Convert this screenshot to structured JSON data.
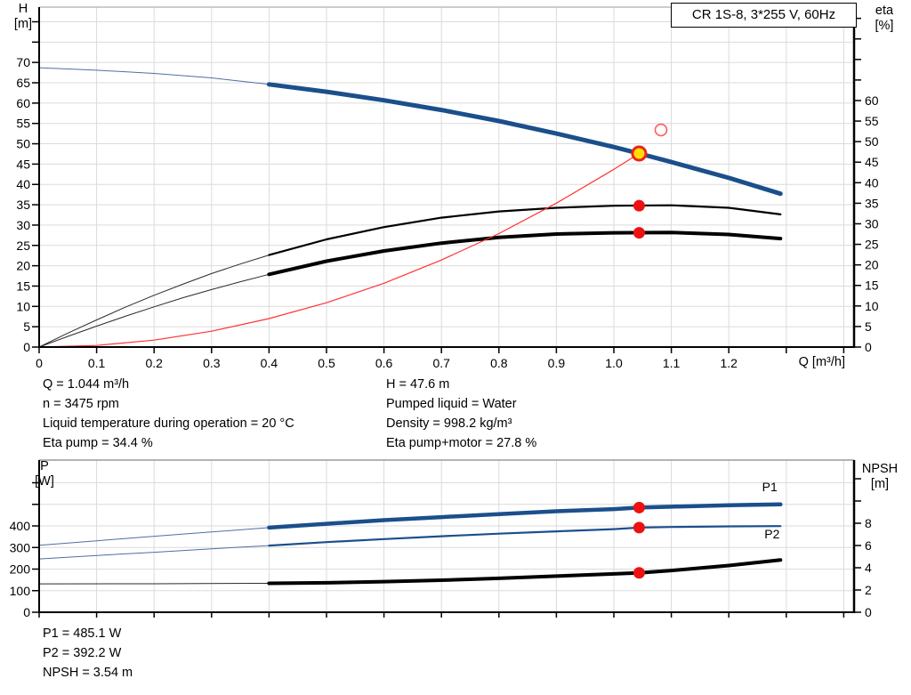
{
  "title_box": {
    "label": "CR 1S-8, 3*255 V, 60Hz"
  },
  "axes": {
    "top_left": "H\n[m]",
    "top_right": "eta\n[%]",
    "x_label": "Q [m³/h]",
    "bottom_left": "P\n[W]",
    "bottom_right": "NPSH\n[m]"
  },
  "info_block": {
    "left": [
      "Q = 1.044 m³/h",
      "n = 3475 rpm",
      "Liquid temperature during operation = 20 °C",
      "Eta pump = 34.4 %"
    ],
    "right": [
      "H = 47.6 m",
      "Pumped liquid = Water",
      "Density = 998.2 kg/m³",
      "Eta pump+motor = 27.8 %"
    ]
  },
  "footer_block": [
    "P1 = 485.1 W",
    "P2 = 392.2 W",
    "NPSH = 3.54 m"
  ],
  "colors": {
    "curve_blue": "#1B4F8C",
    "thin_blue": "#4F6F9F",
    "curve_black": "#000000",
    "thin_black": "#2A2A2A",
    "system_red": "#FF3333",
    "dot_red": "#EE1111",
    "duty_fill": "#FFDE00",
    "duty_ring": "#E8261F",
    "open_red": "#FF5A5A",
    "grid": "#DBDBDB",
    "border_gray": "#9A9A9A",
    "axis": "#000000"
  },
  "chart_data": [
    {
      "type": "line",
      "name": "hq-eta-chart",
      "title": "CR 1S-8, 3*255 V, 60Hz",
      "x_axis": {
        "label": "Q [m³/h]",
        "range": [
          0,
          1.418
        ],
        "tick_values": [
          0,
          0.1,
          0.2,
          0.3,
          0.4,
          0.5,
          0.6,
          0.7,
          0.8,
          0.9,
          1.0,
          1.1,
          1.2,
          1.3,
          1.4
        ],
        "tick_labels": [
          "0",
          "0.1",
          "0.2",
          "0.3",
          "0.4",
          "0.5",
          "0.6",
          "0.7",
          "0.8",
          "0.9",
          "1.0",
          "1.1",
          "1.2"
        ]
      },
      "y_left": {
        "label": "H [m]",
        "range": [
          0,
          83.6
        ],
        "tick_step": 5,
        "tick_max": 80,
        "labeled_max": 70
      },
      "y_right": {
        "label": "eta [%]",
        "range": [
          0,
          82.7
        ],
        "tick_step": 5,
        "tick_max": 80,
        "labeled_max": 60
      },
      "grid": true,
      "series": [
        {
          "name": "head-curve-extension",
          "axis": "left",
          "color_key": "thin_blue",
          "width": 1,
          "points": [
            [
              0,
              68.7
            ],
            [
              0.1,
              68.1
            ],
            [
              0.2,
              67.3
            ],
            [
              0.3,
              66.2
            ],
            [
              0.4,
              64.6
            ]
          ]
        },
        {
          "name": "head-curve",
          "axis": "left",
          "color_key": "curve_blue",
          "width": 5,
          "points": [
            [
              0.4,
              64.6
            ],
            [
              0.5,
              62.8
            ],
            [
              0.6,
              60.7
            ],
            [
              0.7,
              58.3
            ],
            [
              0.8,
              55.6
            ],
            [
              0.9,
              52.5
            ],
            [
              1.0,
              49.2
            ],
            [
              1.044,
              47.6
            ],
            [
              1.1,
              45.5
            ],
            [
              1.2,
              41.6
            ],
            [
              1.29,
              37.7
            ]
          ]
        },
        {
          "name": "eta-pump-curve-extension",
          "axis": "right",
          "color_key": "thin_black",
          "width": 1,
          "points": [
            [
              0,
              0
            ],
            [
              0.05,
              3.4
            ],
            [
              0.1,
              6.6
            ],
            [
              0.15,
              9.7
            ],
            [
              0.2,
              12.6
            ],
            [
              0.25,
              15.3
            ],
            [
              0.3,
              17.9
            ],
            [
              0.35,
              20.2
            ],
            [
              0.4,
              22.4
            ]
          ]
        },
        {
          "name": "eta-pump-curve",
          "axis": "right",
          "color_key": "curve_black",
          "width": 2.2,
          "points": [
            [
              0.4,
              22.4
            ],
            [
              0.5,
              26.2
            ],
            [
              0.6,
              29.2
            ],
            [
              0.7,
              31.5
            ],
            [
              0.8,
              33.0
            ],
            [
              0.9,
              33.9
            ],
            [
              1.0,
              34.4
            ],
            [
              1.1,
              34.5
            ],
            [
              1.2,
              33.9
            ],
            [
              1.29,
              32.3
            ]
          ]
        },
        {
          "name": "eta-pump-motor-curve-extension",
          "axis": "right",
          "color_key": "thin_black",
          "width": 1,
          "points": [
            [
              0,
              0
            ],
            [
              0.05,
              2.6
            ],
            [
              0.1,
              5.1
            ],
            [
              0.15,
              7.5
            ],
            [
              0.2,
              9.8
            ],
            [
              0.25,
              12.0
            ],
            [
              0.3,
              14.0
            ],
            [
              0.35,
              15.9
            ],
            [
              0.4,
              17.7
            ]
          ]
        },
        {
          "name": "eta-pump-motor-curve",
          "axis": "right",
          "color_key": "curve_black",
          "width": 4,
          "points": [
            [
              0.4,
              17.7
            ],
            [
              0.5,
              20.9
            ],
            [
              0.6,
              23.4
            ],
            [
              0.7,
              25.3
            ],
            [
              0.8,
              26.7
            ],
            [
              0.9,
              27.5
            ],
            [
              1.0,
              27.8
            ],
            [
              1.1,
              27.9
            ],
            [
              1.2,
              27.4
            ],
            [
              1.29,
              26.4
            ]
          ]
        },
        {
          "name": "system-curve",
          "axis": "left",
          "color_key": "system_red",
          "width": 1.2,
          "points": [
            [
              0,
              0
            ],
            [
              0.1,
              0.4
            ],
            [
              0.2,
              1.7
            ],
            [
              0.3,
              3.9
            ],
            [
              0.4,
              7.0
            ],
            [
              0.5,
              10.9
            ],
            [
              0.6,
              15.7
            ],
            [
              0.7,
              21.4
            ],
            [
              0.8,
              27.9
            ],
            [
              0.9,
              35.4
            ],
            [
              1.0,
              43.7
            ],
            [
              1.044,
              47.6
            ]
          ]
        }
      ],
      "markers": [
        {
          "name": "duty-point",
          "axis": "left",
          "q": 1.044,
          "value": 47.6,
          "style": "duty"
        },
        {
          "name": "requested-duty-point",
          "axis": "left",
          "q": 1.082,
          "value": 53.4,
          "style": "open-red"
        },
        {
          "name": "eta-pump-point",
          "axis": "right",
          "q": 1.044,
          "value": 34.4,
          "style": "red-dot"
        },
        {
          "name": "eta-pump-motor-point",
          "axis": "right",
          "q": 1.044,
          "value": 27.8,
          "style": "red-dot"
        }
      ],
      "series_labels": []
    },
    {
      "type": "line",
      "name": "power-npsh-chart",
      "x_axis": {
        "label": "",
        "range": [
          0,
          1.418
        ],
        "tick_values": [
          0,
          0.1,
          0.2,
          0.3,
          0.4,
          0.5,
          0.6,
          0.7,
          0.8,
          0.9,
          1.0,
          1.1,
          1.2,
          1.3,
          1.4
        ],
        "tick_labels": []
      },
      "y_left": {
        "label": "P [W]",
        "range": [
          0,
          705
        ],
        "tick_step": 100,
        "tick_max": 600,
        "labeled_max": 400
      },
      "y_right": {
        "label": "NPSH [m]",
        "range": [
          0,
          13.7
        ],
        "tick_step": 2,
        "tick_max": 12,
        "labeled_max": 8
      },
      "grid": true,
      "series": [
        {
          "name": "p1-curve-extension",
          "axis": "left",
          "color_key": "thin_blue",
          "width": 1,
          "points": [
            [
              0,
              310
            ],
            [
              0.1,
              331
            ],
            [
              0.2,
              352
            ],
            [
              0.3,
              372
            ],
            [
              0.4,
              392
            ]
          ]
        },
        {
          "name": "p1-curve",
          "axis": "left",
          "color_key": "curve_blue",
          "width": 4.5,
          "points": [
            [
              0.4,
              392
            ],
            [
              0.5,
              410
            ],
            [
              0.6,
              427
            ],
            [
              0.7,
              441
            ],
            [
              0.8,
              455
            ],
            [
              0.9,
              468
            ],
            [
              1.0,
              478
            ],
            [
              1.044,
              485
            ],
            [
              1.1,
              489
            ],
            [
              1.2,
              496
            ],
            [
              1.29,
              500
            ]
          ]
        },
        {
          "name": "p2-curve-extension",
          "axis": "left",
          "color_key": "thin_blue",
          "width": 1,
          "points": [
            [
              0,
              247
            ],
            [
              0.1,
              263
            ],
            [
              0.2,
              278
            ],
            [
              0.3,
              294
            ],
            [
              0.4,
              309
            ]
          ]
        },
        {
          "name": "p2-curve",
          "axis": "left",
          "color_key": "curve_blue",
          "width": 2.2,
          "points": [
            [
              0.4,
              309
            ],
            [
              0.5,
              325
            ],
            [
              0.6,
              339
            ],
            [
              0.7,
              352
            ],
            [
              0.8,
              364
            ],
            [
              0.9,
              375
            ],
            [
              1.0,
              385
            ],
            [
              1.044,
              392
            ],
            [
              1.1,
              395
            ],
            [
              1.2,
              398
            ],
            [
              1.29,
              399
            ]
          ]
        },
        {
          "name": "npsh-curve-extension",
          "axis": "right",
          "color_key": "thin_black",
          "width": 1,
          "points": [
            [
              0,
              2.55
            ],
            [
              0.2,
              2.56
            ],
            [
              0.4,
              2.6
            ]
          ]
        },
        {
          "name": "npsh-curve",
          "axis": "right",
          "color_key": "curve_black",
          "width": 4,
          "points": [
            [
              0.4,
              2.6
            ],
            [
              0.5,
              2.65
            ],
            [
              0.6,
              2.75
            ],
            [
              0.7,
              2.88
            ],
            [
              0.8,
              3.05
            ],
            [
              0.9,
              3.25
            ],
            [
              1.0,
              3.45
            ],
            [
              1.044,
              3.54
            ],
            [
              1.1,
              3.75
            ],
            [
              1.2,
              4.2
            ],
            [
              1.29,
              4.7
            ]
          ]
        }
      ],
      "markers": [
        {
          "name": "p1-point",
          "axis": "left",
          "q": 1.044,
          "value": 485.1,
          "style": "red-dot"
        },
        {
          "name": "p2-point",
          "axis": "left",
          "q": 1.044,
          "value": 392.2,
          "style": "red-dot"
        },
        {
          "name": "npsh-point",
          "axis": "right",
          "q": 1.044,
          "value": 3.54,
          "style": "red-dot"
        }
      ],
      "series_labels": [
        {
          "text": "P1",
          "axis": "left",
          "q": 1.258,
          "value": 560,
          "color_key": "curve_blue"
        },
        {
          "text": "P2",
          "axis": "left",
          "q": 1.262,
          "value": 342,
          "color_key": "curve_blue"
        }
      ]
    }
  ]
}
